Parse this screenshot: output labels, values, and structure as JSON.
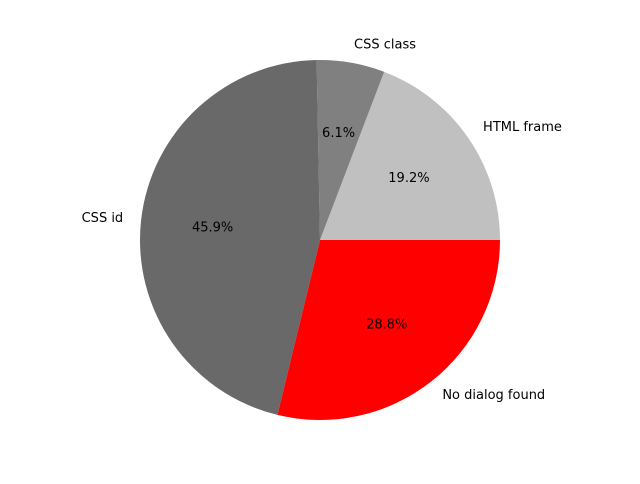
{
  "chart_data": {
    "type": "pie",
    "title": "",
    "start_angle_deg": 0,
    "direction": "counterclockwise",
    "slices": [
      {
        "label": "HTML frame",
        "value": 19.2,
        "pct_label": "19.2%",
        "color": "#c0c0c0"
      },
      {
        "label": "CSS class",
        "value": 6.1,
        "pct_label": "6.1%",
        "color": "#808080"
      },
      {
        "label": "CSS id",
        "value": 45.9,
        "pct_label": "45.9%",
        "color": "#696969"
      },
      {
        "label": "No dialog found",
        "value": 28.8,
        "pct_label": "28.8%",
        "color": "#ff0000"
      }
    ]
  }
}
